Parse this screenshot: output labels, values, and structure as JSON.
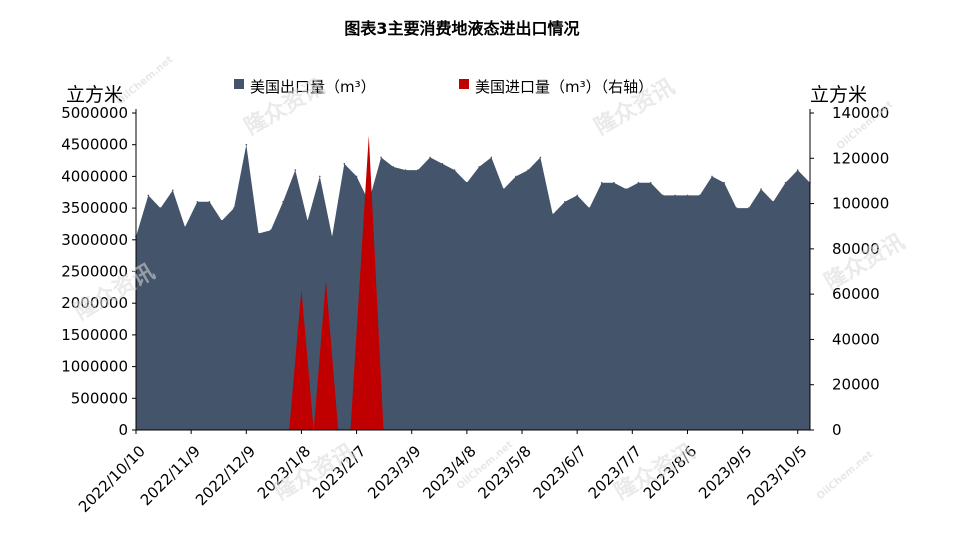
{
  "chart_data": {
    "type": "area",
    "title": "图表3主要消费地液态进出口情况",
    "left_unit": "立方米",
    "right_unit": "立方米",
    "legend": [
      {
        "label": "美国出口量（m³）",
        "color": "#44546a"
      },
      {
        "label": "美国进口量（m³）（右轴）",
        "color": "#c00000"
      }
    ],
    "x_tick_labels": [
      "2022/10/10",
      "2022/11/9",
      "2022/12/9",
      "2023/1/8",
      "2023/2/7",
      "2023/3/9",
      "2023/4/8",
      "2023/5/8",
      "2023/6/7",
      "2023/7/7",
      "2023/8/6",
      "2023/9/5",
      "2023/10/5"
    ],
    "y_left": {
      "min": 0,
      "max": 5000000,
      "step": 500000,
      "ticks": [
        "0",
        "500000",
        "1000000",
        "1500000",
        "2000000",
        "2500000",
        "3000000",
        "3500000",
        "4000000",
        "4500000",
        "5000000"
      ]
    },
    "y_right": {
      "min": 0,
      "max": 140000,
      "step": 20000,
      "ticks": [
        "0",
        "20000",
        "40000",
        "60000",
        "80000",
        "100000",
        "120000",
        "140000"
      ]
    },
    "series": [
      {
        "name": "美国出口量（m³）",
        "axis": "left",
        "color": "#44546a",
        "values": [
          3050000,
          3700000,
          3500000,
          3780000,
          3200000,
          3600000,
          3600000,
          3300000,
          3500000,
          4500000,
          3100000,
          3150000,
          3600000,
          4100000,
          3300000,
          4000000,
          3050000,
          4200000,
          4000000,
          3600000,
          4300000,
          4150000,
          4100000,
          4100000,
          4300000,
          4200000,
          4100000,
          3900000,
          4150000,
          4300000,
          3800000,
          4000000,
          4100000,
          4300000,
          3400000,
          3600000,
          3700000,
          3500000,
          3900000,
          3900000,
          3800000,
          3900000,
          3900000,
          3700000,
          3700000,
          3700000,
          3700000,
          4000000,
          3900000,
          3500000,
          3500000,
          3800000,
          3600000,
          3900000,
          4100000,
          3900000
        ]
      },
      {
        "name": "美国进口量（m³）（右轴）",
        "axis": "right",
        "color": "#c00000",
        "values": [
          0,
          0,
          0,
          0,
          0,
          0,
          0,
          0,
          0,
          0,
          0,
          0,
          0,
          0,
          0,
          0,
          0,
          0,
          0,
          0,
          0,
          0,
          0,
          0,
          0,
          0,
          0,
          0,
          0,
          0,
          0,
          0,
          0,
          0,
          0,
          0,
          0,
          0,
          0,
          0,
          0,
          0,
          0,
          0,
          0,
          0,
          0,
          0,
          0,
          0,
          0,
          0,
          0,
          0,
          0,
          0
        ],
        "spikes": [
          {
            "index_start": 12.5,
            "index_peak": 13.5,
            "index_end": 14.5,
            "value": 62000
          },
          {
            "index_start": 14.5,
            "index_peak": 15.5,
            "index_end": 16.5,
            "value": 66000
          },
          {
            "index_start": 17.5,
            "index_peak": 19.0,
            "index_end": 20.2,
            "value": 130000
          }
        ]
      }
    ],
    "watermarks": [
      "隆众资讯",
      "OilChem.net"
    ]
  }
}
